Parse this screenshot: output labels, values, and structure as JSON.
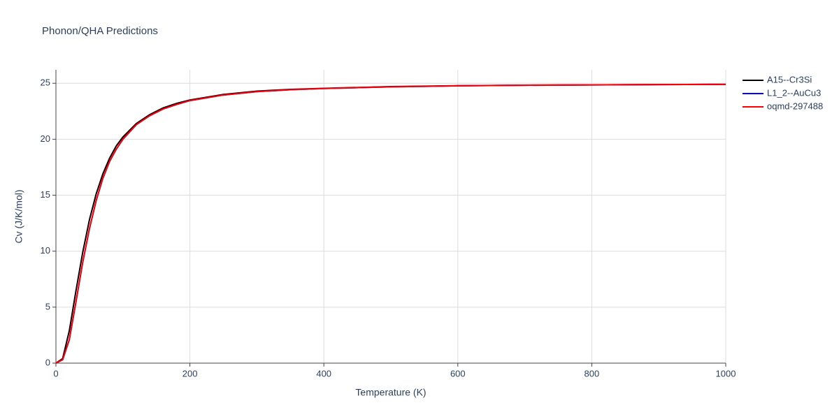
{
  "chart_data": {
    "type": "line",
    "title": "Phonon/QHA Predictions",
    "x_label": "Temperature (K)",
    "y_label": "Cv (J/K/mol)",
    "x": [
      0,
      10,
      20,
      30,
      40,
      50,
      60,
      70,
      80,
      90,
      100,
      120,
      140,
      160,
      180,
      200,
      250,
      300,
      350,
      400,
      500,
      600,
      700,
      800,
      900,
      1000
    ],
    "series": [
      {
        "name": "A15--Cr3Si",
        "color": "#000000",
        "values": [
          0,
          0.4,
          2.9,
          6.5,
          9.9,
          12.8,
          15.1,
          16.9,
          18.3,
          19.4,
          20.2,
          21.4,
          22.2,
          22.8,
          23.2,
          23.5,
          24.0,
          24.3,
          24.45,
          24.55,
          24.7,
          24.78,
          24.83,
          24.86,
          24.88,
          24.9
        ]
      },
      {
        "name": "L1_2--AuCu3",
        "color": "#0000ff",
        "values": [
          0,
          0.3,
          2.1,
          5.5,
          9.0,
          12.0,
          14.5,
          16.5,
          18.0,
          19.1,
          20.0,
          21.3,
          22.1,
          22.7,
          23.1,
          23.45,
          23.95,
          24.25,
          24.42,
          24.53,
          24.68,
          24.77,
          24.82,
          24.85,
          24.88,
          24.9
        ]
      },
      {
        "name": "oqmd-297488",
        "color": "#ff0000",
        "values": [
          0,
          0.3,
          2.1,
          5.5,
          9.0,
          12.0,
          14.5,
          16.5,
          18.0,
          19.1,
          20.0,
          21.3,
          22.1,
          22.7,
          23.1,
          23.45,
          23.95,
          24.25,
          24.42,
          24.53,
          24.68,
          24.77,
          24.82,
          24.85,
          24.88,
          24.9
        ]
      }
    ],
    "xlim": [
      0,
      1000
    ],
    "xticks": [
      0,
      200,
      400,
      600,
      800,
      1000
    ],
    "ylim": [
      0,
      26.2
    ],
    "yticks": [
      0,
      5,
      10,
      15,
      20,
      25
    ],
    "grid": true,
    "legend": "right"
  }
}
